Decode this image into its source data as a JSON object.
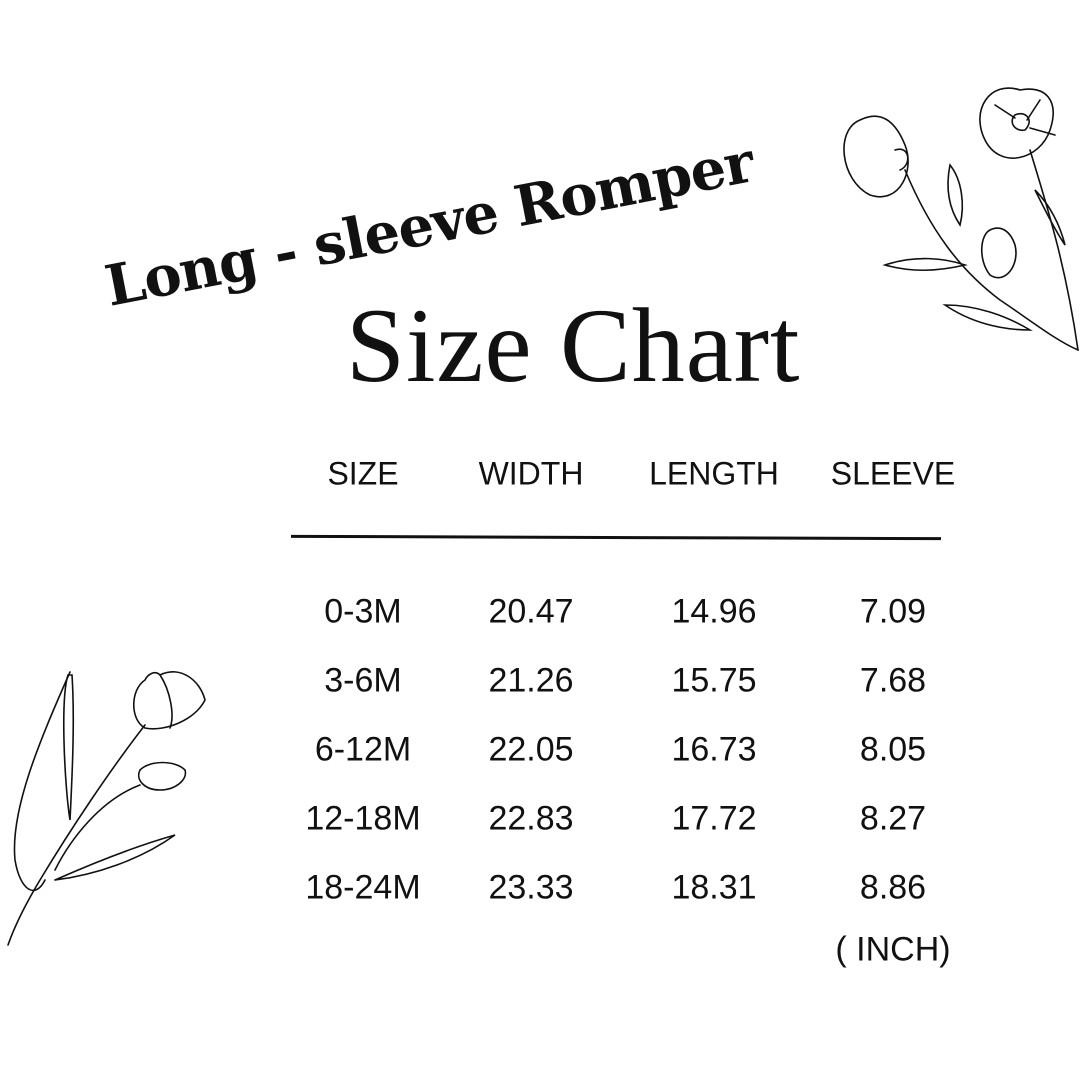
{
  "subtitle": "Long - sleeve Romper",
  "title": "Size Chart",
  "table": {
    "headers": [
      "SIZE",
      "WIDTH",
      "LENGTH",
      "SLEEVE"
    ],
    "rows": [
      [
        "0-3M",
        "20.47",
        "14.96",
        "7.09"
      ],
      [
        "3-6M",
        "21.26",
        "15.75",
        "7.68"
      ],
      [
        "6-12M",
        "22.05",
        "16.73",
        "8.05"
      ],
      [
        "12-18M",
        "22.83",
        "17.72",
        "8.27"
      ],
      [
        "18-24M",
        "23.33",
        "18.31",
        "8.86"
      ]
    ],
    "unit": "( INCH)"
  },
  "decorations": [
    "line-art-flowers-top-right",
    "line-art-tulips-bottom-left"
  ]
}
